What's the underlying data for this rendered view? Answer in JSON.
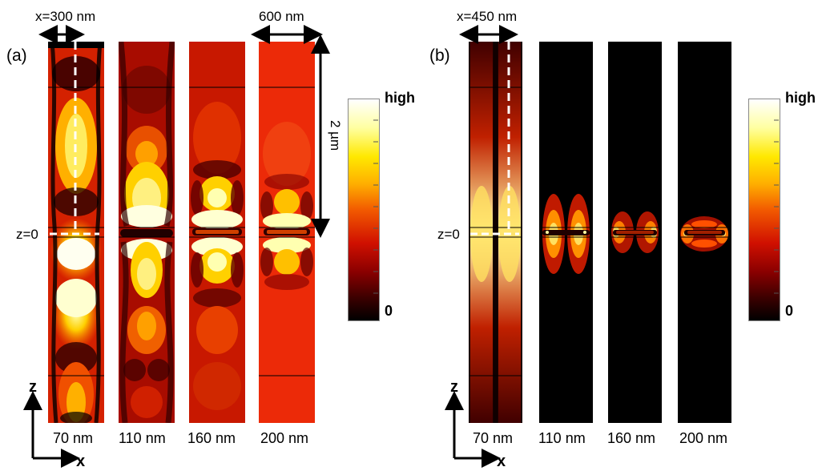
{
  "panels": [
    {
      "label": "(a)",
      "width_annotation": "x=300 nm",
      "z_label": "z=0",
      "columns": [
        "70 nm",
        "110 nm",
        "160 nm",
        "200 nm"
      ],
      "colorbar": {
        "high": "high",
        "low": "0"
      },
      "extra": {
        "width_label": "600 nm",
        "height_label": "2 µm"
      }
    },
    {
      "label": "(b)",
      "width_annotation": "x=450 nm",
      "z_label": "z=0",
      "columns": [
        "70 nm",
        "110 nm",
        "160 nm",
        "200 nm"
      ],
      "colorbar": {
        "high": "high",
        "low": "0"
      }
    }
  ],
  "axes": {
    "z": "z",
    "x": "x"
  },
  "colormap": [
    "#000000",
    "#3a0000",
    "#8a0000",
    "#d01000",
    "#f25a00",
    "#ffb000",
    "#ffe800",
    "#ffffc8",
    "#ffffff"
  ]
}
